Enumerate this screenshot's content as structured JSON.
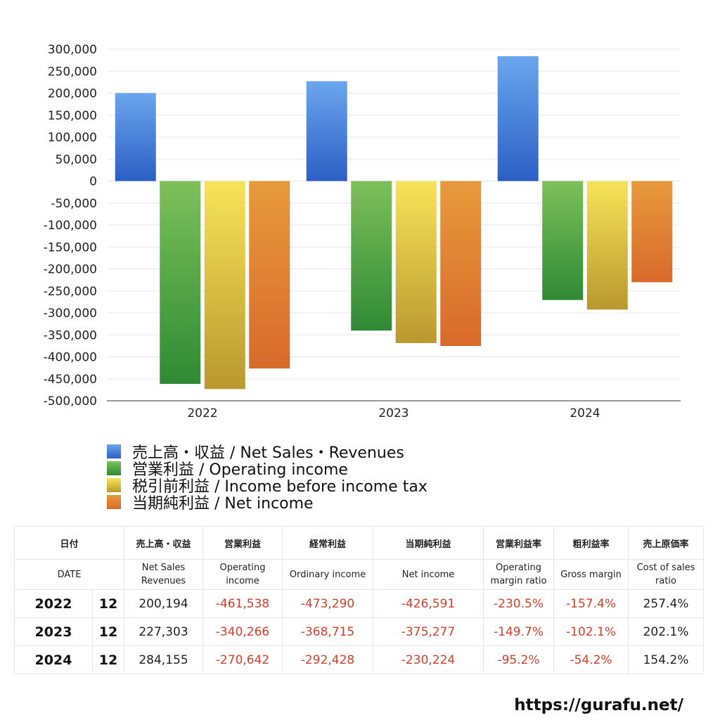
{
  "chart_data": {
    "type": "bar",
    "categories": [
      "2022",
      "2023",
      "2024"
    ],
    "series": [
      {
        "name": "売上高・収益 / Net Sales・Revenues",
        "values": [
          200194,
          227303,
          284155
        ]
      },
      {
        "name": "営業利益 / Operating income",
        "values": [
          -461538,
          -340266,
          -270642
        ]
      },
      {
        "name": "税引前利益 / Income before income tax",
        "values": [
          -473290,
          -368715,
          -292428
        ]
      },
      {
        "name": "当期純利益 / Net income",
        "values": [
          -426591,
          -375277,
          -230224
        ]
      }
    ],
    "ylim": [
      -500000,
      300000
    ],
    "ytick_step": 50000,
    "yticks": [
      "300,000",
      "250,000",
      "200,000",
      "150,000",
      "100,000",
      "50,000",
      "0",
      "-50,000",
      "-100,000",
      "-150,000",
      "-200,000",
      "-250,000",
      "-300,000",
      "-350,000",
      "-400,000",
      "-450,000",
      "-500,000"
    ],
    "grid": true,
    "legend_position": "bottom-left",
    "colors": [
      {
        "top": "#6aa6ee",
        "bottom": "#2c5fc4"
      },
      {
        "top": "#7dc05b",
        "bottom": "#2f8a34"
      },
      {
        "top": "#f7e45a",
        "bottom": "#b9982e"
      },
      {
        "top": "#e79a3c",
        "bottom": "#d86a2c"
      }
    ]
  },
  "table": {
    "headers_ja": [
      "日付",
      "売上高・収益",
      "営業利益",
      "経常利益",
      "当期純利益",
      "営業利益率",
      "粗利益率",
      "売上原価率"
    ],
    "headers_en": [
      [
        "DATE"
      ],
      [
        "Net Sales",
        "Revenues"
      ],
      [
        "Operating",
        "income"
      ],
      [
        "Ordinary income"
      ],
      [
        "Net income"
      ],
      [
        "Operating",
        "margin ratio"
      ],
      [
        "Gross margin"
      ],
      [
        "Cost of sales",
        "ratio"
      ]
    ],
    "rows": [
      {
        "year": "2022",
        "month": "12",
        "net_sales": "200,194",
        "operating_income": "-461,538",
        "ordinary_income": "-473,290",
        "net_income": "-426,591",
        "operating_margin": "-230.5%",
        "gross_margin": "-157.4%",
        "cost_of_sales_ratio": "257.4%"
      },
      {
        "year": "2023",
        "month": "12",
        "net_sales": "227,303",
        "operating_income": "-340,266",
        "ordinary_income": "-368,715",
        "net_income": "-375,277",
        "operating_margin": "-149.7%",
        "gross_margin": "-102.1%",
        "cost_of_sales_ratio": "202.1%"
      },
      {
        "year": "2024",
        "month": "12",
        "net_sales": "284,155",
        "operating_income": "-270,642",
        "ordinary_income": "-292,428",
        "net_income": "-230,224",
        "operating_margin": "-95.2%",
        "gross_margin": "-54.2%",
        "cost_of_sales_ratio": "154.2%"
      }
    ]
  },
  "footer": {
    "url": "https://gurafu.net/"
  }
}
